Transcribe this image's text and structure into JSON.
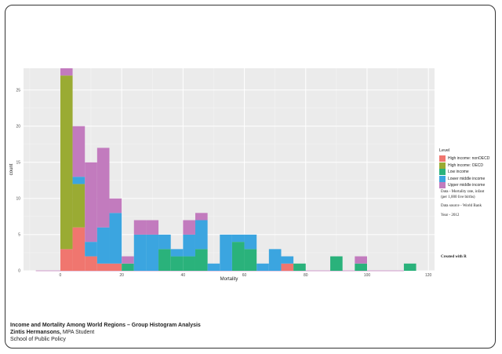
{
  "chart_data": {
    "type": "bar",
    "stacked": true,
    "xlabel": "Mortality",
    "ylabel": "count",
    "xlim": [
      -12,
      122
    ],
    "ylim": [
      0,
      28
    ],
    "x_ticks": [
      0,
      20,
      40,
      60,
      80,
      100,
      120
    ],
    "y_ticks": [
      0,
      5,
      10,
      15,
      20,
      25
    ],
    "bin_width": 4,
    "bin_starts": [
      0,
      4,
      8,
      12,
      16,
      20,
      24,
      28,
      32,
      36,
      40,
      44,
      48,
      52,
      56,
      60,
      64,
      68,
      72,
      76,
      80,
      84,
      88,
      92,
      96,
      100,
      104,
      108,
      112,
      116
    ],
    "series": [
      {
        "name": "High income: nonOECD",
        "color": "#f8766d",
        "values": [
          3,
          6,
          2,
          1,
          1,
          0,
          0,
          0,
          0,
          0,
          0,
          0,
          0,
          0,
          0,
          0,
          0,
          0,
          1,
          0,
          0,
          0,
          0,
          0,
          0,
          0,
          0,
          0,
          0,
          0
        ]
      },
      {
        "name": "High income: OECD",
        "color": "#a3a500",
        "values": [
          24,
          6,
          0,
          0,
          0,
          0,
          0,
          0,
          0,
          0,
          0,
          0,
          0,
          0,
          0,
          0,
          0,
          0,
          0,
          0,
          0,
          0,
          0,
          0,
          0,
          0,
          0,
          0,
          0,
          0
        ]
      },
      {
        "name": "Low income",
        "color": "#00bf7d",
        "values": [
          0,
          0,
          0,
          0,
          0,
          1,
          0,
          0,
          3,
          2,
          2,
          3,
          0,
          0,
          4,
          3,
          0,
          0,
          0,
          1,
          0,
          0,
          2,
          0,
          1,
          0,
          0,
          0,
          1,
          0
        ]
      },
      {
        "name": "Lower middle income",
        "color": "#00b0f6",
        "values": [
          0,
          1,
          2,
          5,
          7,
          0,
          5,
          5,
          2,
          1,
          3,
          4,
          1,
          5,
          1,
          2,
          1,
          3,
          1,
          0,
          0,
          0,
          0,
          0,
          0,
          0,
          0,
          0,
          0,
          0
        ]
      },
      {
        "name": "Upper middle income",
        "color": "#e76bf3",
        "values": [
          1,
          7,
          11,
          11,
          2,
          1,
          2,
          2,
          0,
          0,
          2,
          1,
          0,
          0,
          0,
          0,
          0,
          0,
          0,
          0,
          0,
          0,
          0,
          0,
          1,
          0,
          0,
          0,
          0,
          0
        ]
      }
    ],
    "legend_title": "Level",
    "legend_position": "right",
    "grid": true,
    "panel_background": "#ebebeb",
    "upper_middle_display_color": "#c27bbe",
    "lower_middle_display_color": "#3ba5e0",
    "low_display_color": "#2ab27b",
    "oecd_display_color": "#9aab33",
    "nonoecd_display_color": "#f0766f"
  },
  "notes": {
    "data_1": "Data - Mortality rate, infant (per 1,000 live births)",
    "data_2": "Data source - World Bank",
    "year": "Year - 2012",
    "created": "Created with R"
  },
  "footer": {
    "title": "Income and Mortality Among World Regions – Group Histogram Analysis",
    "name": "Zintis Hermansons,",
    "role": " MPA Student",
    "school": "School of Public Policy"
  }
}
